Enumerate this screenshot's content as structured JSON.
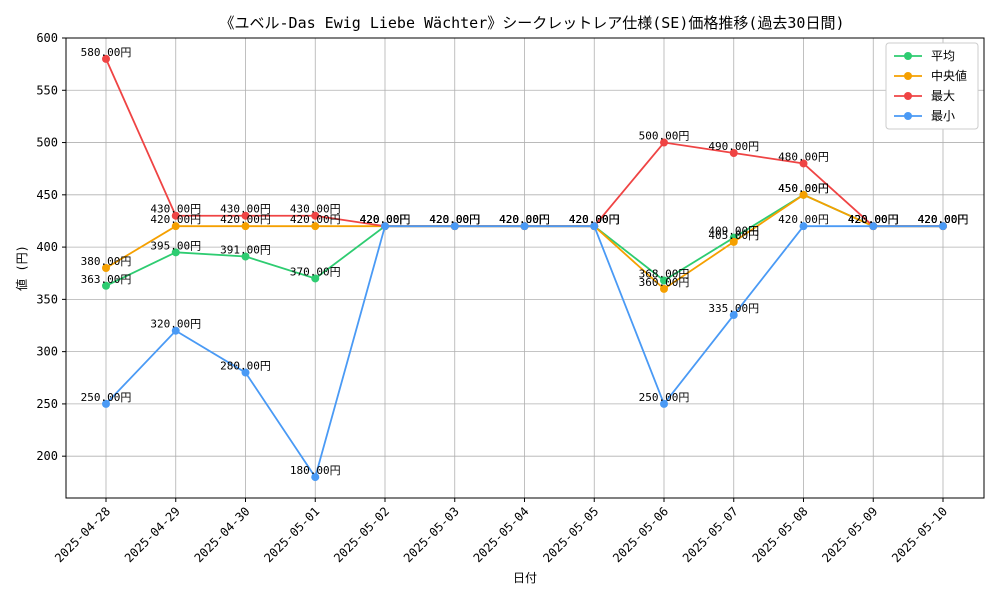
{
  "chart_data": {
    "type": "line",
    "title": "《ユベル-Das Ewig Liebe Wächter》シークレットレア仕様(SE)価格推移(過去30日間)",
    "xlabel": "日付",
    "ylabel": "値 (円)",
    "ylim": [
      160,
      600
    ],
    "yticks": [
      200,
      250,
      300,
      350,
      400,
      450,
      500,
      550,
      600
    ],
    "grid": true,
    "legend_position": "top-right",
    "categories": [
      "2025-04-28",
      "2025-04-29",
      "2025-04-30",
      "2025-05-01",
      "2025-05-02",
      "2025-05-03",
      "2025-05-04",
      "2025-05-05",
      "2025-05-06",
      "2025-05-07",
      "2025-05-08",
      "2025-05-09",
      "2025-05-10"
    ],
    "series": [
      {
        "name": "平均",
        "color": "#2ecc71",
        "values": [
          363,
          395,
          391,
          370,
          420,
          420,
          420,
          420,
          368,
          409,
          450,
          420,
          420
        ],
        "labels": [
          "363.00円",
          "395.00円",
          "391.00円",
          "370.00円",
          "420.00円",
          "420.00円",
          "420.00円",
          "420.00円",
          "368.00円",
          "409.00円",
          "450.00円",
          "420.00円",
          "420.00円"
        ]
      },
      {
        "name": "中央値",
        "color": "#f5a000",
        "values": [
          380,
          420,
          420,
          420,
          420,
          420,
          420,
          420,
          360,
          405,
          450,
          420,
          420
        ],
        "labels": [
          "380.00円",
          "420.00円",
          "420.00円",
          "420.00円",
          "420.00円",
          "420.00円",
          "420.00円",
          "420.00円",
          "360.00円",
          "405.00円",
          "450.00円",
          "420.00円",
          "420.00円"
        ]
      },
      {
        "name": "最大",
        "color": "#ef4444",
        "values": [
          580,
          430,
          430,
          430,
          420,
          420,
          420,
          420,
          500,
          490,
          480,
          420,
          420
        ],
        "labels": [
          "580.00円",
          "430.00円",
          "430.00円",
          "430.00円",
          "420.00円",
          "420.00円",
          "420.00円",
          "420.00円",
          "500.00円",
          "490.00円",
          "480.00円",
          "420.00円",
          "420.00円"
        ]
      },
      {
        "name": "最小",
        "color": "#4a9af5",
        "values": [
          250,
          320,
          280,
          180,
          420,
          420,
          420,
          420,
          250,
          335,
          420,
          420,
          420
        ],
        "labels": [
          "250.00円",
          "320.00円",
          "280.00円",
          "180.00円",
          "420.00円",
          "420.00円",
          "420.00円",
          "420.00円",
          "250.00円",
          "335.00円",
          "420.00円",
          "420.00円",
          "420.00円"
        ]
      }
    ]
  }
}
